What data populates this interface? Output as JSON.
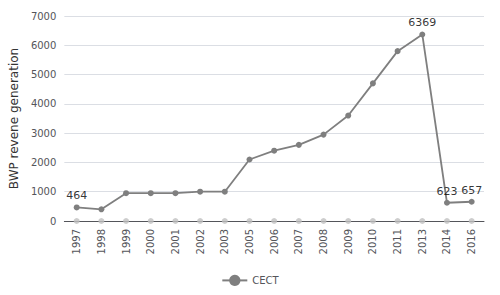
{
  "chart_data": {
    "type": "line",
    "categories": [
      "1997",
      "1998",
      "1999",
      "2000",
      "2001",
      "2002",
      "2003",
      "2005",
      "2006",
      "2007",
      "2008",
      "2009",
      "2010",
      "2011",
      "2013",
      "2014",
      "2016"
    ],
    "series": [
      {
        "type": "scatter",
        "color": "#c0c0c0",
        "marker": "circle",
        "values": [
          0,
          0,
          0,
          0,
          0,
          0,
          0,
          0,
          0,
          0,
          0,
          0,
          0,
          0,
          0,
          0,
          0
        ]
      },
      {
        "name": "CECT",
        "type": "line",
        "color": "#7f7f7f",
        "marker": "circle",
        "line_style": "solid",
        "values": [
          464,
          400,
          950,
          950,
          950,
          1000,
          1000,
          2100,
          2400,
          2600,
          2950,
          3600,
          4700,
          5800,
          6369,
          623,
          657
        ]
      }
    ],
    "annotations": [
      {
        "x": "1997",
        "y": 464,
        "text": "464"
      },
      {
        "x": "2013",
        "y": 6369,
        "text": "6369"
      },
      {
        "x": "2014",
        "y": 623,
        "text": "623"
      },
      {
        "x": "2016",
        "y": 657,
        "text": "657"
      }
    ],
    "ylabel": "BWP revene generation",
    "ylim": [
      0,
      7000
    ],
    "yticks": [
      0,
      1000,
      2000,
      3000,
      4000,
      5000,
      6000,
      7000
    ],
    "grid": true,
    "legend": "bottom"
  }
}
